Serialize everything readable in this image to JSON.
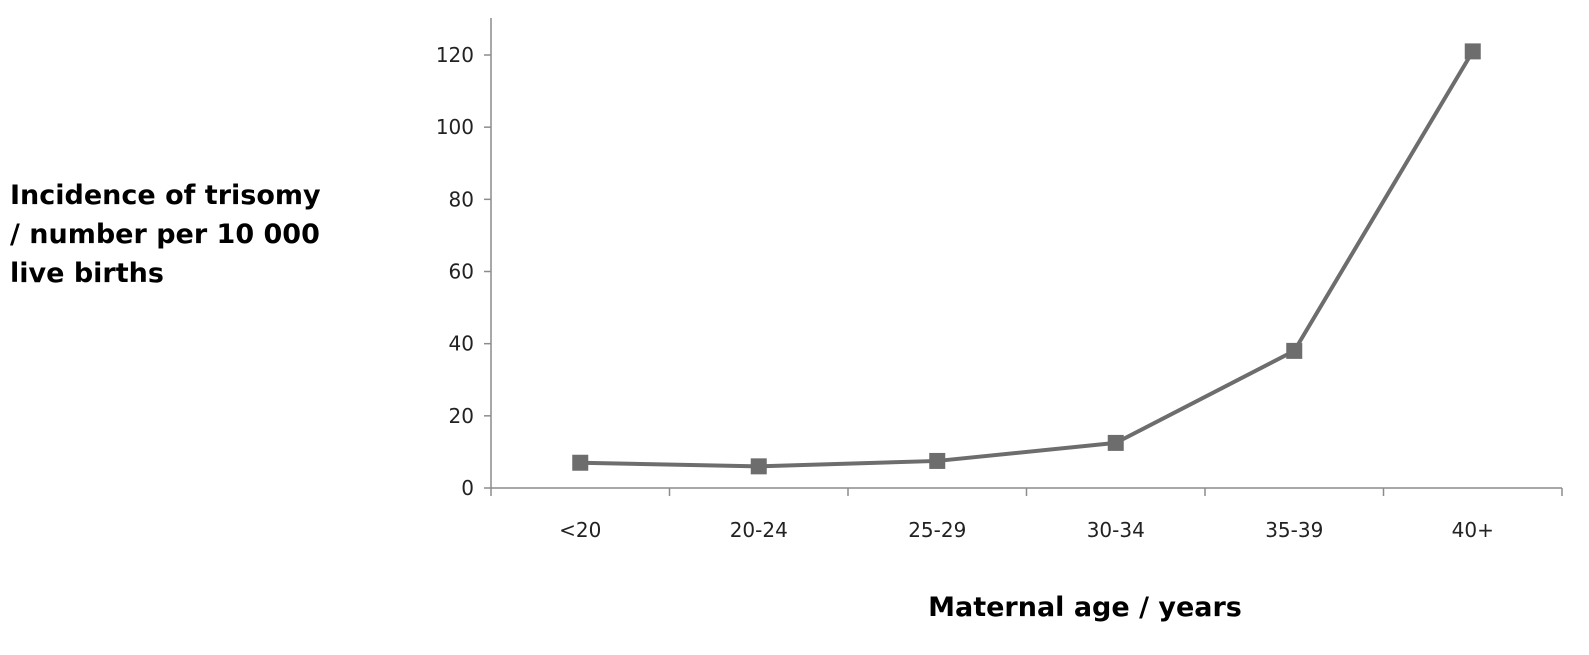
{
  "chart_data": {
    "type": "line",
    "categories": [
      "<20",
      "20-24",
      "25-29",
      "30-34",
      "35-39",
      "40+"
    ],
    "series": [
      {
        "values": [
          7,
          6,
          7.5,
          12.5,
          38,
          121
        ],
        "color": "#6d6d6d",
        "marker": "square"
      }
    ],
    "ylabel_lines": [
      "Incidence of trisomy",
      "/ number per 10 000",
      "live births"
    ],
    "xlabel": "Maternal age / years",
    "ylim": [
      0,
      120
    ],
    "yticks": [
      "0",
      "20",
      "40",
      "60",
      "80",
      "100",
      "120"
    ],
    "grid": false,
    "legend": "none"
  }
}
